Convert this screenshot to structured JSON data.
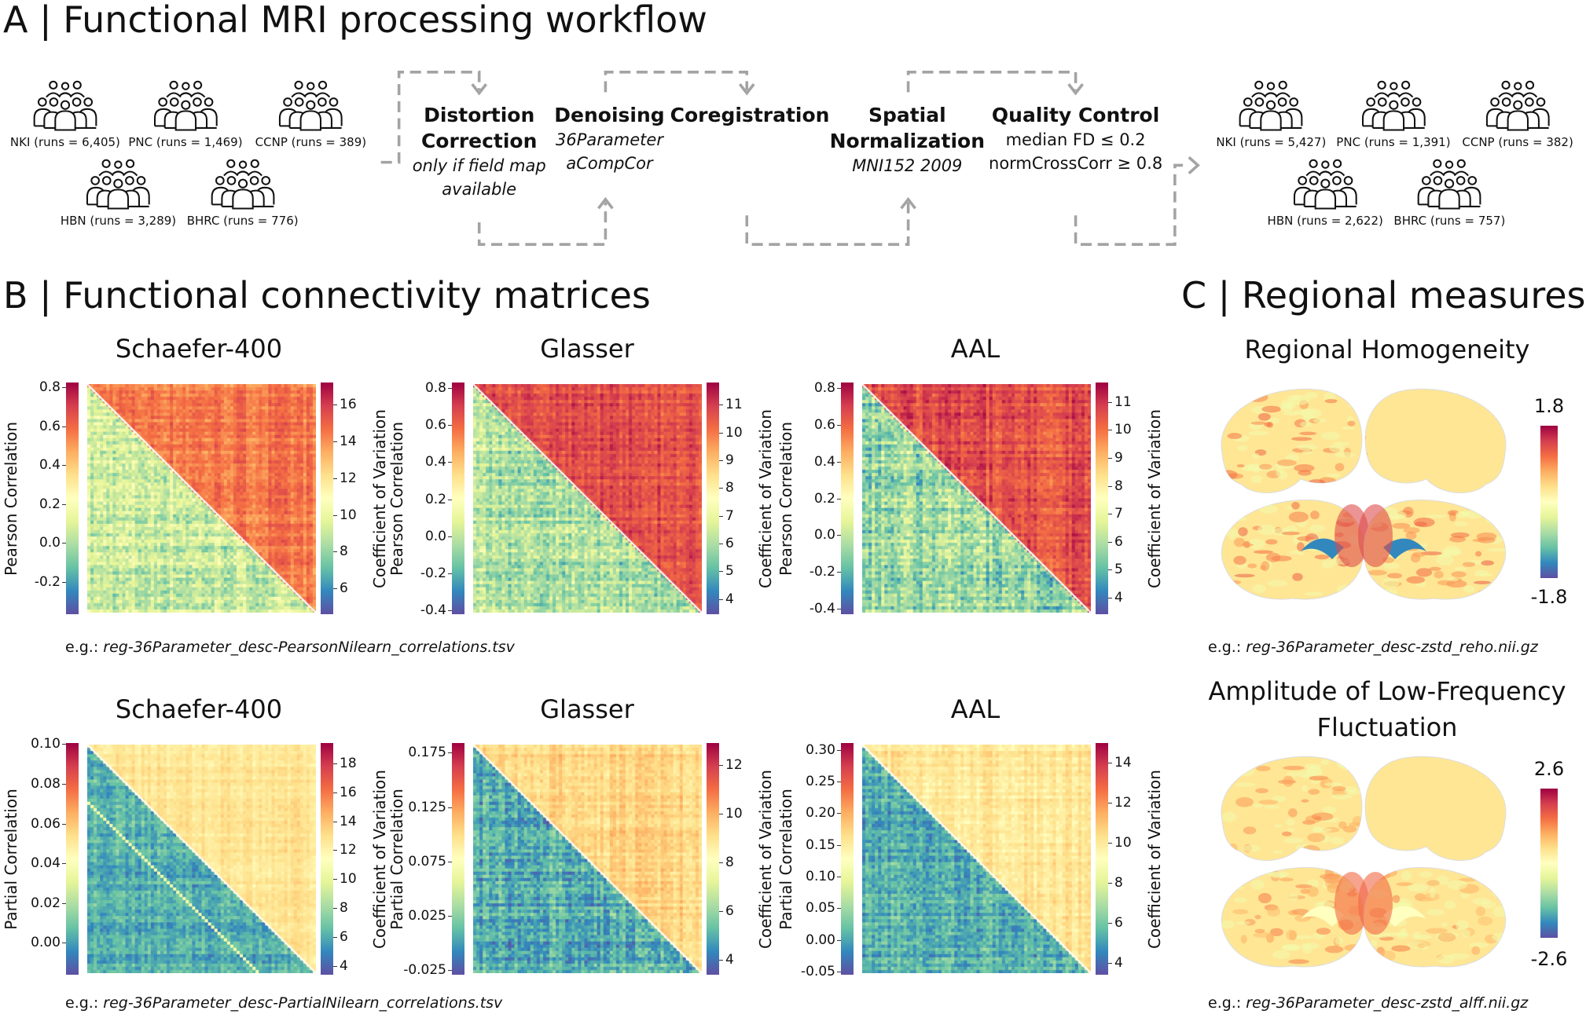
{
  "panel_a": {
    "title": "A | Functional MRI processing workflow",
    "input_cohorts": [
      {
        "label": "NKI (runs = 6,405)"
      },
      {
        "label": "PNC (runs = 1,469)"
      },
      {
        "label": "CCNP (runs = 389)"
      },
      {
        "label": "HBN (runs = 3,289)"
      },
      {
        "label": "BHRC (runs = 776)"
      }
    ],
    "steps": [
      {
        "title1": "Distortion",
        "title2": "Correction",
        "sub1": "only if field map",
        "sub2": "available"
      },
      {
        "title1": "Denoising",
        "sub1": "36Parameter",
        "sub2": "aCompCor"
      },
      {
        "title1": "Coregistration"
      },
      {
        "title1": "Spatial",
        "title2": "Normalization",
        "sub1": "MNI152 2009"
      },
      {
        "title1": "Quality Control",
        "crit1": "median FD ≤ 0.2",
        "crit2": "normCrossCorr ≥ 0.8"
      }
    ],
    "output_cohorts": [
      {
        "label": "NKI (runs = 5,427)"
      },
      {
        "label": "PNC (runs = 1,391)"
      },
      {
        "label": "CCNP (runs = 382)"
      },
      {
        "label": "HBN (runs = 2,622)"
      },
      {
        "label": "BHRC (runs = 757)"
      }
    ],
    "arrow_color": "#a3a3a3"
  },
  "panel_b": {
    "title": "B | Functional connectivity matrices",
    "footnote_prefix": "e.g.: ",
    "rows": [
      {
        "footnote": "reg-36Parameter_desc-PearsonNilearn_correlations.tsv",
        "matrices": [
          {
            "title": "Schaefer-400",
            "left_label": "Pearson Correlation",
            "left_range": [
              -0.367,
              0.826
            ],
            "left_ticks": [
              "-0.2",
              "0.0",
              "0.2",
              "0.4",
              "0.6",
              "0.8"
            ],
            "right_label": "Coefficient of Variation",
            "right_range": [
              4.6,
              17.2
            ],
            "right_ticks": [
              "6",
              "8",
              "10",
              "12",
              "14",
              "16"
            ]
          },
          {
            "title": "Glasser",
            "left_label": "Pearson Correlation",
            "left_range": [
              -0.42,
              0.83
            ],
            "left_ticks": [
              "-0.4",
              "-0.2",
              "0.0",
              "0.2",
              "0.4",
              "0.6",
              "0.8"
            ],
            "right_label": "Coefficient of Variation",
            "right_range": [
              3.45,
              11.8
            ],
            "right_ticks": [
              "4",
              "5",
              "6",
              "7",
              "8",
              "9",
              "10",
              "11"
            ]
          },
          {
            "title": "AAL",
            "left_label": "Pearson Correlation",
            "left_range": [
              -0.43,
              0.83
            ],
            "left_ticks": [
              "-0.4",
              "-0.2",
              "0.0",
              "0.2",
              "0.4",
              "0.6",
              "0.8"
            ],
            "right_label": "Coefficient of Variation",
            "right_range": [
              3.4,
              11.7
            ],
            "right_ticks": [
              "4",
              "5",
              "6",
              "7",
              "8",
              "9",
              "10",
              "11"
            ]
          }
        ]
      },
      {
        "footnote": "reg-36Parameter_desc-PartialNilearn_correlations.tsv",
        "matrices": [
          {
            "title": "Schaefer-400",
            "left_label": "Partial Correlation",
            "left_range": [
              -0.016,
              0.1005
            ],
            "left_ticks": [
              "0.00",
              "0.02",
              "0.04",
              "0.06",
              "0.08",
              "0.10"
            ],
            "right_label": "Coefficient of Variation",
            "right_range": [
              3.4,
              19.4
            ],
            "right_ticks": [
              "4",
              "6",
              "8",
              "10",
              "12",
              "14",
              "16",
              "18"
            ]
          },
          {
            "title": "Glasser",
            "left_label": "Partial Correlation",
            "left_range": [
              -0.029,
              0.184
            ],
            "left_ticks": [
              "-0.025",
              "0.025",
              "0.075",
              "0.125",
              "0.175"
            ],
            "right_label": "Coefficient of Variation",
            "right_range": [
              3.4,
              12.9
            ],
            "right_ticks": [
              "4",
              "6",
              "8",
              "10",
              "12"
            ]
          },
          {
            "title": "AAL",
            "left_label": "Partial Correlation",
            "left_range": [
              -0.055,
              0.311
            ],
            "left_ticks": [
              "-0.05",
              "0.00",
              "0.05",
              "0.10",
              "0.15",
              "0.20",
              "0.25",
              "0.30"
            ],
            "right_label": "Coefficient of Variation",
            "right_range": [
              3.4,
              15.0
            ],
            "right_ticks": [
              "4",
              "6",
              "8",
              "10",
              "12",
              "14"
            ]
          }
        ]
      }
    ]
  },
  "panel_c": {
    "title": "C | Regional measures",
    "footnote_prefix": "e.g.: ",
    "measures": [
      {
        "title1": "Regional Homogeneity",
        "title2": "",
        "max": "1.8",
        "min": "-1.8",
        "footnote": "reg-36Parameter_desc-zstd_reho.nii.gz"
      },
      {
        "title1": "Amplitude of Low-Frequency",
        "title2": "Fluctuation",
        "max": "2.6",
        "min": "-2.6",
        "footnote": "reg-36Parameter_desc-zstd_alff.nii.gz"
      }
    ]
  },
  "colormap": [
    "#5e4fa2",
    "#3288bd",
    "#66c2a5",
    "#abdda4",
    "#e6f598",
    "#ffffbf",
    "#fee08b",
    "#fdae61",
    "#f46d43",
    "#d53e4f",
    "#9e0142"
  ]
}
